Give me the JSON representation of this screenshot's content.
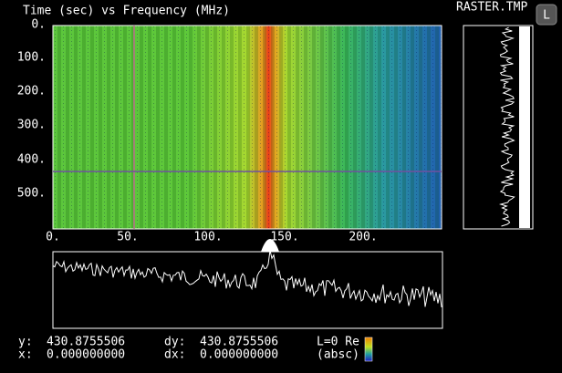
{
  "title": "Time (sec) vs Frequency (MHz)",
  "file": "RASTER.TMP",
  "button": "L",
  "y_ticks": [
    "0.",
    "100.",
    "200.",
    "300.",
    "400.",
    "500."
  ],
  "x_ticks": [
    "0.",
    "50.",
    "100.",
    "150.",
    "200."
  ],
  "readout": {
    "y_label": "y:",
    "y": "430.8755506",
    "dy_label": "dy:",
    "dy": "430.8755506",
    "x_label": "x:",
    "x": "0.000000000",
    "dx_label": "dx:",
    "dx": "0.000000000",
    "mode": "L=0 Re",
    "unit": "(absc)"
  }
}
